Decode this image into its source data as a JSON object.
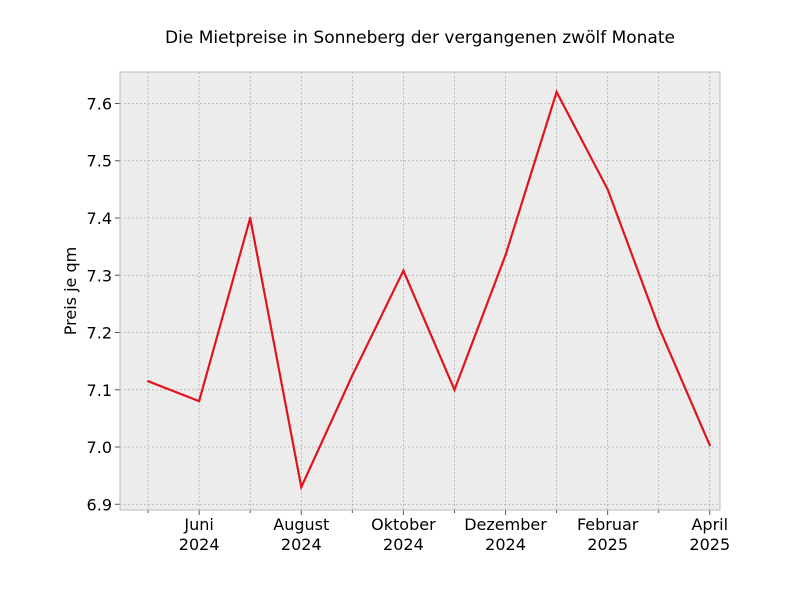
{
  "chart_data": {
    "type": "line",
    "title": "Die Mietpreise in Sonneberg der vergangenen zwölf Monate",
    "xlabel": "",
    "ylabel": "Preis je qm",
    "x": [
      "2024-05",
      "2024-06",
      "2024-07",
      "2024-08",
      "2024-09",
      "2024-10",
      "2024-11",
      "2024-12",
      "2025-01",
      "2025-02",
      "2025-03",
      "2025-04"
    ],
    "series": [
      {
        "values": [
          7.115,
          7.08,
          7.4,
          6.93,
          7.125,
          7.308,
          7.1,
          7.335,
          7.62,
          7.45,
          7.21,
          7.003
        ],
        "color": "#e0141e"
      }
    ],
    "x_ticks": [
      {
        "line1": "Juni",
        "line2": "2024"
      },
      {
        "line1": "August",
        "line2": "2024"
      },
      {
        "line1": "Oktober",
        "line2": "2024"
      },
      {
        "line1": "Dezember",
        "line2": "2024"
      },
      {
        "line1": "Februar",
        "line2": "2025"
      },
      {
        "line1": "April",
        "line2": "2025"
      }
    ],
    "y_ticks": [
      "6.9",
      "7.0",
      "7.1",
      "7.2",
      "7.3",
      "7.4",
      "7.5",
      "7.6"
    ],
    "ylim": [
      6.89,
      7.655
    ],
    "grid": true,
    "background": "#ececec",
    "grid_color": "#b0b0b0"
  }
}
